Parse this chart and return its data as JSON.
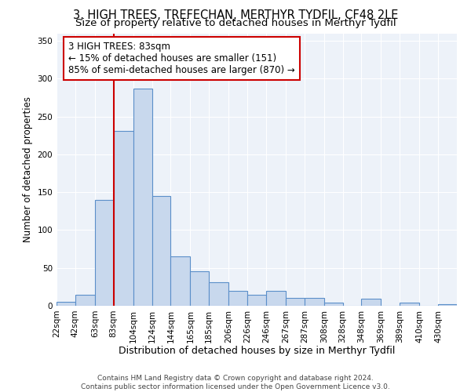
{
  "title": "3, HIGH TREES, TREFECHAN, MERTHYR TYDFIL, CF48 2LE",
  "subtitle": "Size of property relative to detached houses in Merthyr Tydfil",
  "xlabel": "Distribution of detached houses by size in Merthyr Tydfil",
  "ylabel": "Number of detached properties",
  "bin_labels": [
    "22sqm",
    "42sqm",
    "63sqm",
    "83sqm",
    "104sqm",
    "124sqm",
    "144sqm",
    "165sqm",
    "185sqm",
    "206sqm",
    "226sqm",
    "246sqm",
    "267sqm",
    "287sqm",
    "308sqm",
    "328sqm",
    "348sqm",
    "369sqm",
    "389sqm",
    "410sqm",
    "430sqm"
  ],
  "bar_heights": [
    5,
    14,
    140,
    231,
    287,
    145,
    65,
    46,
    31,
    20,
    14,
    20,
    10,
    10,
    4,
    0,
    9,
    0,
    4,
    0,
    2
  ],
  "bar_color": "#c8d8ed",
  "bar_edge_color": "#5b8fc9",
  "vline_x_index": 3,
  "vline_color": "#cc0000",
  "annotation_line1": "3 HIGH TREES: 83sqm",
  "annotation_line2": "← 15% of detached houses are smaller (151)",
  "annotation_line3": "85% of semi-detached houses are larger (870) →",
  "annotation_box_edge": "#cc0000",
  "ylim": [
    0,
    360
  ],
  "yticks": [
    0,
    50,
    100,
    150,
    200,
    250,
    300,
    350
  ],
  "bg_color": "#edf2f9",
  "footer_line1": "Contains HM Land Registry data © Crown copyright and database right 2024.",
  "footer_line2": "Contains public sector information licensed under the Open Government Licence v3.0.",
  "title_fontsize": 10.5,
  "subtitle_fontsize": 9.5,
  "xlabel_fontsize": 9,
  "ylabel_fontsize": 8.5,
  "tick_fontsize": 7.5,
  "annotation_fontsize": 8.5,
  "footer_fontsize": 6.5
}
